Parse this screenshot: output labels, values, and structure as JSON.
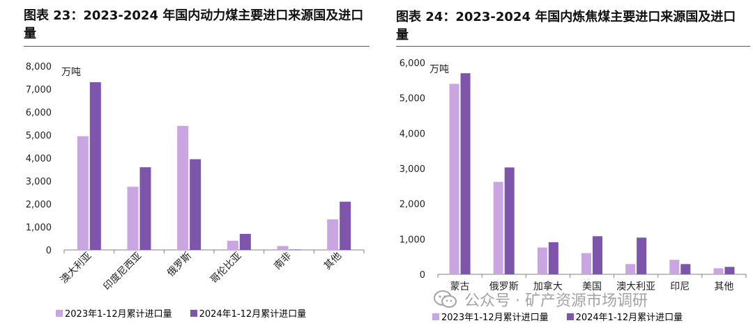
{
  "colors": {
    "series2023": "#c9a6e2",
    "series2024": "#7d55ab",
    "axis": "#808080"
  },
  "watermark": {
    "text": "公众号 · 矿产资源市场调研"
  },
  "chart_data": [
    {
      "type": "bar",
      "title": "图表 23：2023-2024 年国内动力煤主要进口来源国及进口量",
      "ylabel": "万吨",
      "ylim": [
        0,
        8000
      ],
      "ytick_labels": [
        "0",
        "1,000",
        "2,000",
        "3,000",
        "4,000",
        "5,000",
        "6,000",
        "7,000",
        "8,000"
      ],
      "categories": [
        "澳大利亚",
        "印度尼西亚",
        "俄罗斯",
        "哥伦比亚",
        "南非",
        "其他"
      ],
      "series": [
        {
          "name": "2023年1-12月累计进口量",
          "values": [
            4950,
            2750,
            5400,
            400,
            170,
            1330
          ]
        },
        {
          "name": "2024年1-12月累计进口量",
          "values": [
            7300,
            3600,
            3950,
            700,
            20,
            2100
          ]
        }
      ],
      "legend": "bottom"
    },
    {
      "type": "bar",
      "title": "图表 24：2023-2024 年国内炼焦煤主要进口来源国及进口量",
      "ylabel": "万吨",
      "ylim": [
        0,
        6000
      ],
      "ytick_labels": [
        "0",
        "1,000",
        "2,000",
        "3,000",
        "4,000",
        "5,000",
        "6,000"
      ],
      "categories": [
        "蒙古",
        "俄罗斯",
        "加拿大",
        "美国",
        "澳大利亚",
        "印尼",
        "其他"
      ],
      "series": [
        {
          "name": "2023年1-12月累计进口量",
          "values": [
            5400,
            2620,
            760,
            600,
            290,
            410,
            170
          ]
        },
        {
          "name": "2024年1-12月累计进口量",
          "values": [
            5700,
            3030,
            910,
            1080,
            1040,
            290,
            210
          ]
        }
      ],
      "legend": "bottom"
    }
  ]
}
